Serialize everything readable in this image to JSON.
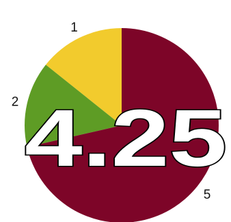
{
  "chart_data": {
    "type": "pie",
    "slices": [
      {
        "label": "1",
        "value": 1,
        "color": "#f2cb2d"
      },
      {
        "label": "2",
        "value": 1,
        "color": "#5e9c25"
      },
      {
        "label": "5",
        "value": 5,
        "color": "#7d0528"
      }
    ],
    "start_angle_deg": 0,
    "direction": "counterclockwise",
    "overlay_value": "4.25",
    "overlay_text_color": "#ffffff",
    "overlay_outline_color": "#000000"
  }
}
